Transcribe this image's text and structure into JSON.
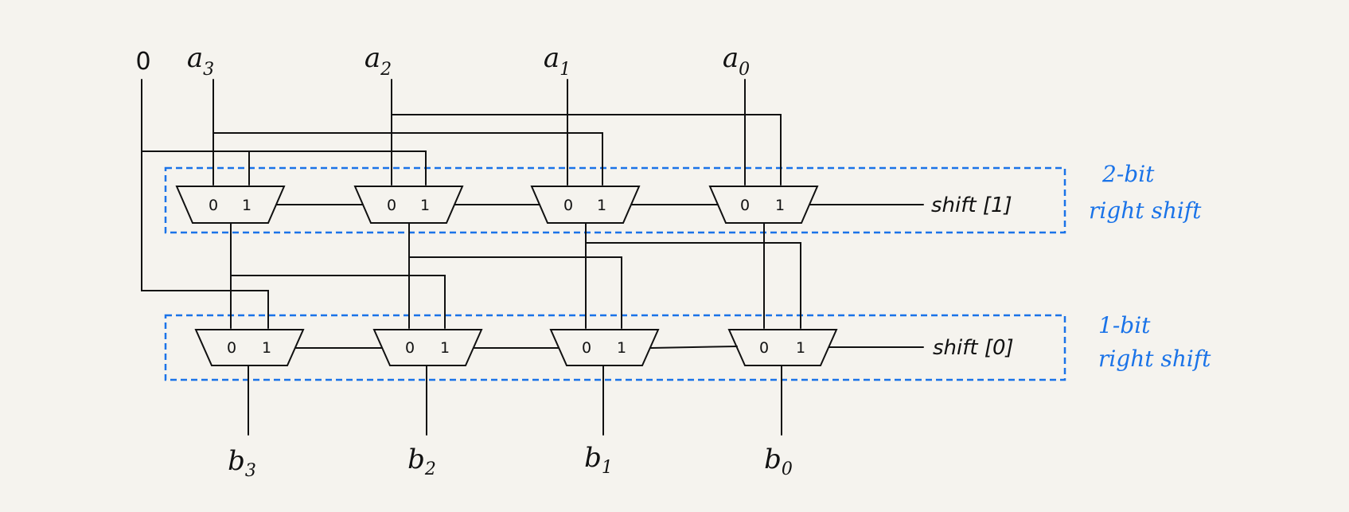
{
  "inputs": {
    "zero": "0",
    "a3": {
      "base": "a",
      "sub": "3"
    },
    "a2": {
      "base": "a",
      "sub": "2"
    },
    "a1": {
      "base": "a",
      "sub": "1"
    },
    "a0": {
      "base": "a",
      "sub": "0"
    }
  },
  "outputs": {
    "b3": {
      "base": "b",
      "sub": "3"
    },
    "b2": {
      "base": "b",
      "sub": "2"
    },
    "b1": {
      "base": "b",
      "sub": "1"
    },
    "b0": {
      "base": "b",
      "sub": "0"
    }
  },
  "mux_inputs": {
    "in0": "0",
    "in1": "1"
  },
  "stages": {
    "top": {
      "control": "shift [1]",
      "note_line1": "2-bit",
      "note_line2": "right shift"
    },
    "bottom": {
      "control": "shift [0]",
      "note_line1": "1-bit",
      "note_line2": "right shift"
    }
  },
  "colors": {
    "ink": "#111111",
    "annotation": "#1a73e8",
    "paper": "#f5f3ee"
  }
}
